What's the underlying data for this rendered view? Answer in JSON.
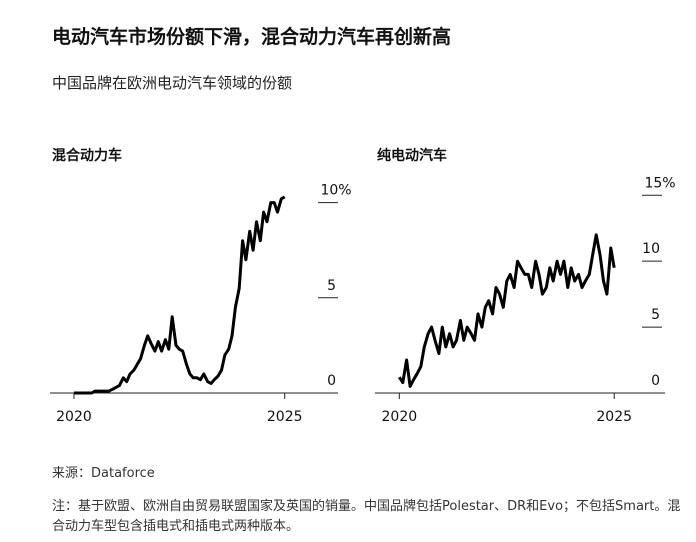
{
  "header": {
    "title": "电动汽车市场份额下滑，混合动力汽车再创新高",
    "subtitle": "中国品牌在欧洲电动汽车领域的份额"
  },
  "chart_data": [
    {
      "type": "line",
      "title": "混合动力车",
      "x": [
        2020,
        2020.08,
        2020.17,
        2020.25,
        2020.33,
        2020.42,
        2020.5,
        2020.58,
        2020.67,
        2020.75,
        2020.83,
        2020.92,
        2021,
        2021.08,
        2021.17,
        2021.25,
        2021.33,
        2021.42,
        2021.5,
        2021.58,
        2021.67,
        2021.75,
        2021.83,
        2021.92,
        2022,
        2022.08,
        2022.17,
        2022.25,
        2022.33,
        2022.42,
        2022.5,
        2022.58,
        2022.67,
        2022.75,
        2022.83,
        2022.92,
        2023,
        2023.08,
        2023.17,
        2023.25,
        2023.33,
        2023.42,
        2023.5,
        2023.58,
        2023.67,
        2023.75,
        2023.83,
        2023.92,
        2024,
        2024.08,
        2024.17,
        2024.25,
        2024.33,
        2024.42,
        2024.5,
        2024.58,
        2024.67,
        2024.75,
        2024.83,
        2024.92,
        2025
      ],
      "values": [
        0,
        0,
        0,
        0,
        0,
        0,
        0.1,
        0.1,
        0.1,
        0.1,
        0.1,
        0.2,
        0.3,
        0.4,
        0.8,
        0.6,
        1.0,
        1.2,
        1.5,
        1.8,
        2.5,
        3.0,
        2.6,
        2.2,
        2.7,
        2.2,
        2.8,
        2.3,
        4.0,
        2.5,
        2.3,
        2.2,
        1.5,
        1.0,
        0.8,
        0.8,
        0.7,
        1.0,
        0.6,
        0.5,
        0.7,
        0.9,
        1.2,
        2.0,
        2.3,
        3.0,
        4.5,
        5.5,
        8.0,
        7.0,
        8.5,
        7.5,
        9.0,
        8.0,
        9.5,
        9.0,
        10.0,
        10.0,
        9.5,
        10.2,
        10.3
      ],
      "color": "#000000",
      "xlim": [
        2019.55,
        2025.6
      ],
      "xticks": [
        2020,
        2025
      ],
      "ylim": [
        0,
        10.4
      ],
      "yticks": [
        0,
        5,
        {
          "value": 10,
          "label": "10%"
        }
      ]
    },
    {
      "type": "line",
      "title": "纯电动汽车",
      "x": [
        2020,
        2020.08,
        2020.17,
        2020.25,
        2020.33,
        2020.42,
        2020.5,
        2020.58,
        2020.67,
        2020.75,
        2020.83,
        2020.92,
        2021,
        2021.08,
        2021.17,
        2021.25,
        2021.33,
        2021.42,
        2021.5,
        2021.58,
        2021.67,
        2021.75,
        2021.83,
        2021.92,
        2022,
        2022.08,
        2022.17,
        2022.25,
        2022.33,
        2022.42,
        2022.5,
        2022.58,
        2022.67,
        2022.75,
        2022.83,
        2022.92,
        2023,
        2023.08,
        2023.17,
        2023.25,
        2023.33,
        2023.42,
        2023.5,
        2023.58,
        2023.67,
        2023.75,
        2023.83,
        2023.92,
        2024,
        2024.08,
        2024.17,
        2024.25,
        2024.33,
        2024.42,
        2024.5,
        2024.58,
        2024.67,
        2024.75,
        2024.83,
        2024.92,
        2025
      ],
      "values": [
        1.2,
        0.8,
        2.5,
        0.5,
        1.0,
        1.5,
        2.0,
        3.5,
        4.5,
        5.0,
        4.0,
        3.0,
        5.0,
        3.5,
        4.5,
        3.5,
        4.0,
        5.5,
        4.0,
        5.0,
        4.5,
        4.0,
        6.0,
        5.0,
        6.5,
        7.0,
        6.0,
        8.0,
        7.5,
        6.5,
        8.5,
        9.0,
        8.0,
        10.0,
        9.5,
        9.0,
        9.0,
        8.0,
        10.0,
        9.0,
        7.5,
        8.0,
        9.5,
        8.5,
        10.0,
        9.0,
        10.0,
        8.0,
        9.5,
        8.5,
        9.0,
        8.0,
        8.5,
        9.0,
        10.5,
        12.0,
        10.5,
        8.5,
        7.5,
        11.0,
        9.5
      ],
      "color": "#000000",
      "xlim": [
        2019.55,
        2025.6
      ],
      "xticks": [
        2020,
        2025
      ],
      "ylim": [
        0,
        15.4
      ],
      "yticks": [
        0,
        5,
        10,
        {
          "value": 15,
          "label": "15%"
        }
      ]
    }
  ],
  "footer": {
    "source": "来源：Dataforce",
    "note": "注：基于欧盟、欧洲自由贸易联盟国家及英国的销量。中国品牌包括Polestar、DR和Evo；不包括Smart。混合动力车型包含插电式和插电式两种版本。"
  }
}
